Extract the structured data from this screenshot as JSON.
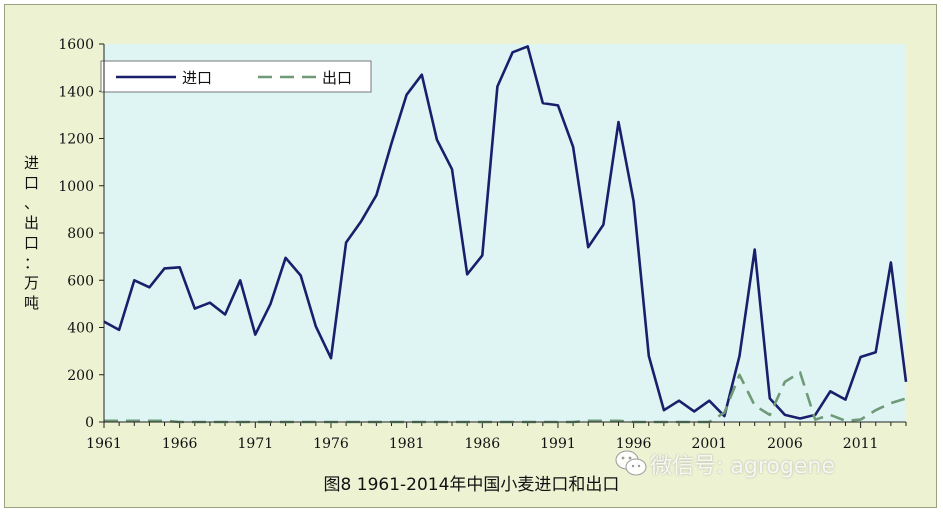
{
  "caption": "图8  1961-2014年中国小麦进口和出口",
  "watermark": "微信号: agrogene",
  "ylabel_chars": [
    "进",
    "口",
    "、",
    "出",
    "口",
    "：",
    "万",
    "吨"
  ],
  "chart_data": {
    "type": "line",
    "title": "图8  1961-2014年中国小麦进口和出口",
    "ylabel": "进口、出口：万吨",
    "xlabel": "",
    "xlim": [
      1961,
      2014
    ],
    "ylim": [
      0,
      1600
    ],
    "x_ticks": [
      1961,
      1966,
      1971,
      1976,
      1981,
      1986,
      1991,
      1996,
      2001,
      2006,
      2011
    ],
    "y_ticks": [
      0,
      200,
      400,
      600,
      800,
      1000,
      1200,
      1400,
      1600
    ],
    "legend_position": "top-left",
    "grid": false,
    "colors": {
      "import": "#1a1f6b",
      "export": "#6f9a78",
      "plot_bg": "#dff5f4",
      "outer_bg": "#edf2d3"
    },
    "x": [
      1961,
      1962,
      1963,
      1964,
      1965,
      1966,
      1967,
      1968,
      1969,
      1970,
      1971,
      1972,
      1973,
      1974,
      1975,
      1976,
      1977,
      1978,
      1979,
      1980,
      1981,
      1982,
      1983,
      1984,
      1985,
      1986,
      1987,
      1988,
      1989,
      1990,
      1991,
      1992,
      1993,
      1994,
      1995,
      1996,
      1997,
      1998,
      1999,
      2000,
      2001,
      2002,
      2003,
      2004,
      2005,
      2006,
      2007,
      2008,
      2009,
      2010,
      2011,
      2012,
      2013,
      2014
    ],
    "series": [
      {
        "name": "进口",
        "style": "solid",
        "values": [
          425,
          390,
          600,
          570,
          650,
          655,
          480,
          505,
          455,
          600,
          370,
          500,
          695,
          620,
          405,
          270,
          760,
          850,
          960,
          1180,
          1385,
          1470,
          1195,
          1070,
          625,
          705,
          1420,
          1565,
          1590,
          1350,
          1340,
          1165,
          740,
          835,
          1270,
          935,
          280,
          50,
          90,
          45,
          90,
          25,
          280,
          730,
          100,
          30,
          15,
          30,
          130,
          95,
          275,
          295,
          675,
          170
        ]
      },
      {
        "name": "出口",
        "style": "dashed",
        "values": [
          5,
          5,
          5,
          5,
          5,
          0,
          0,
          0,
          0,
          0,
          0,
          0,
          0,
          0,
          0,
          0,
          0,
          0,
          0,
          0,
          0,
          0,
          0,
          0,
          0,
          0,
          0,
          0,
          0,
          0,
          0,
          0,
          5,
          5,
          5,
          0,
          0,
          0,
          0,
          0,
          0,
          40,
          200,
          70,
          30,
          170,
          210,
          10,
          30,
          5,
          10,
          50,
          80,
          100
        ]
      }
    ]
  }
}
